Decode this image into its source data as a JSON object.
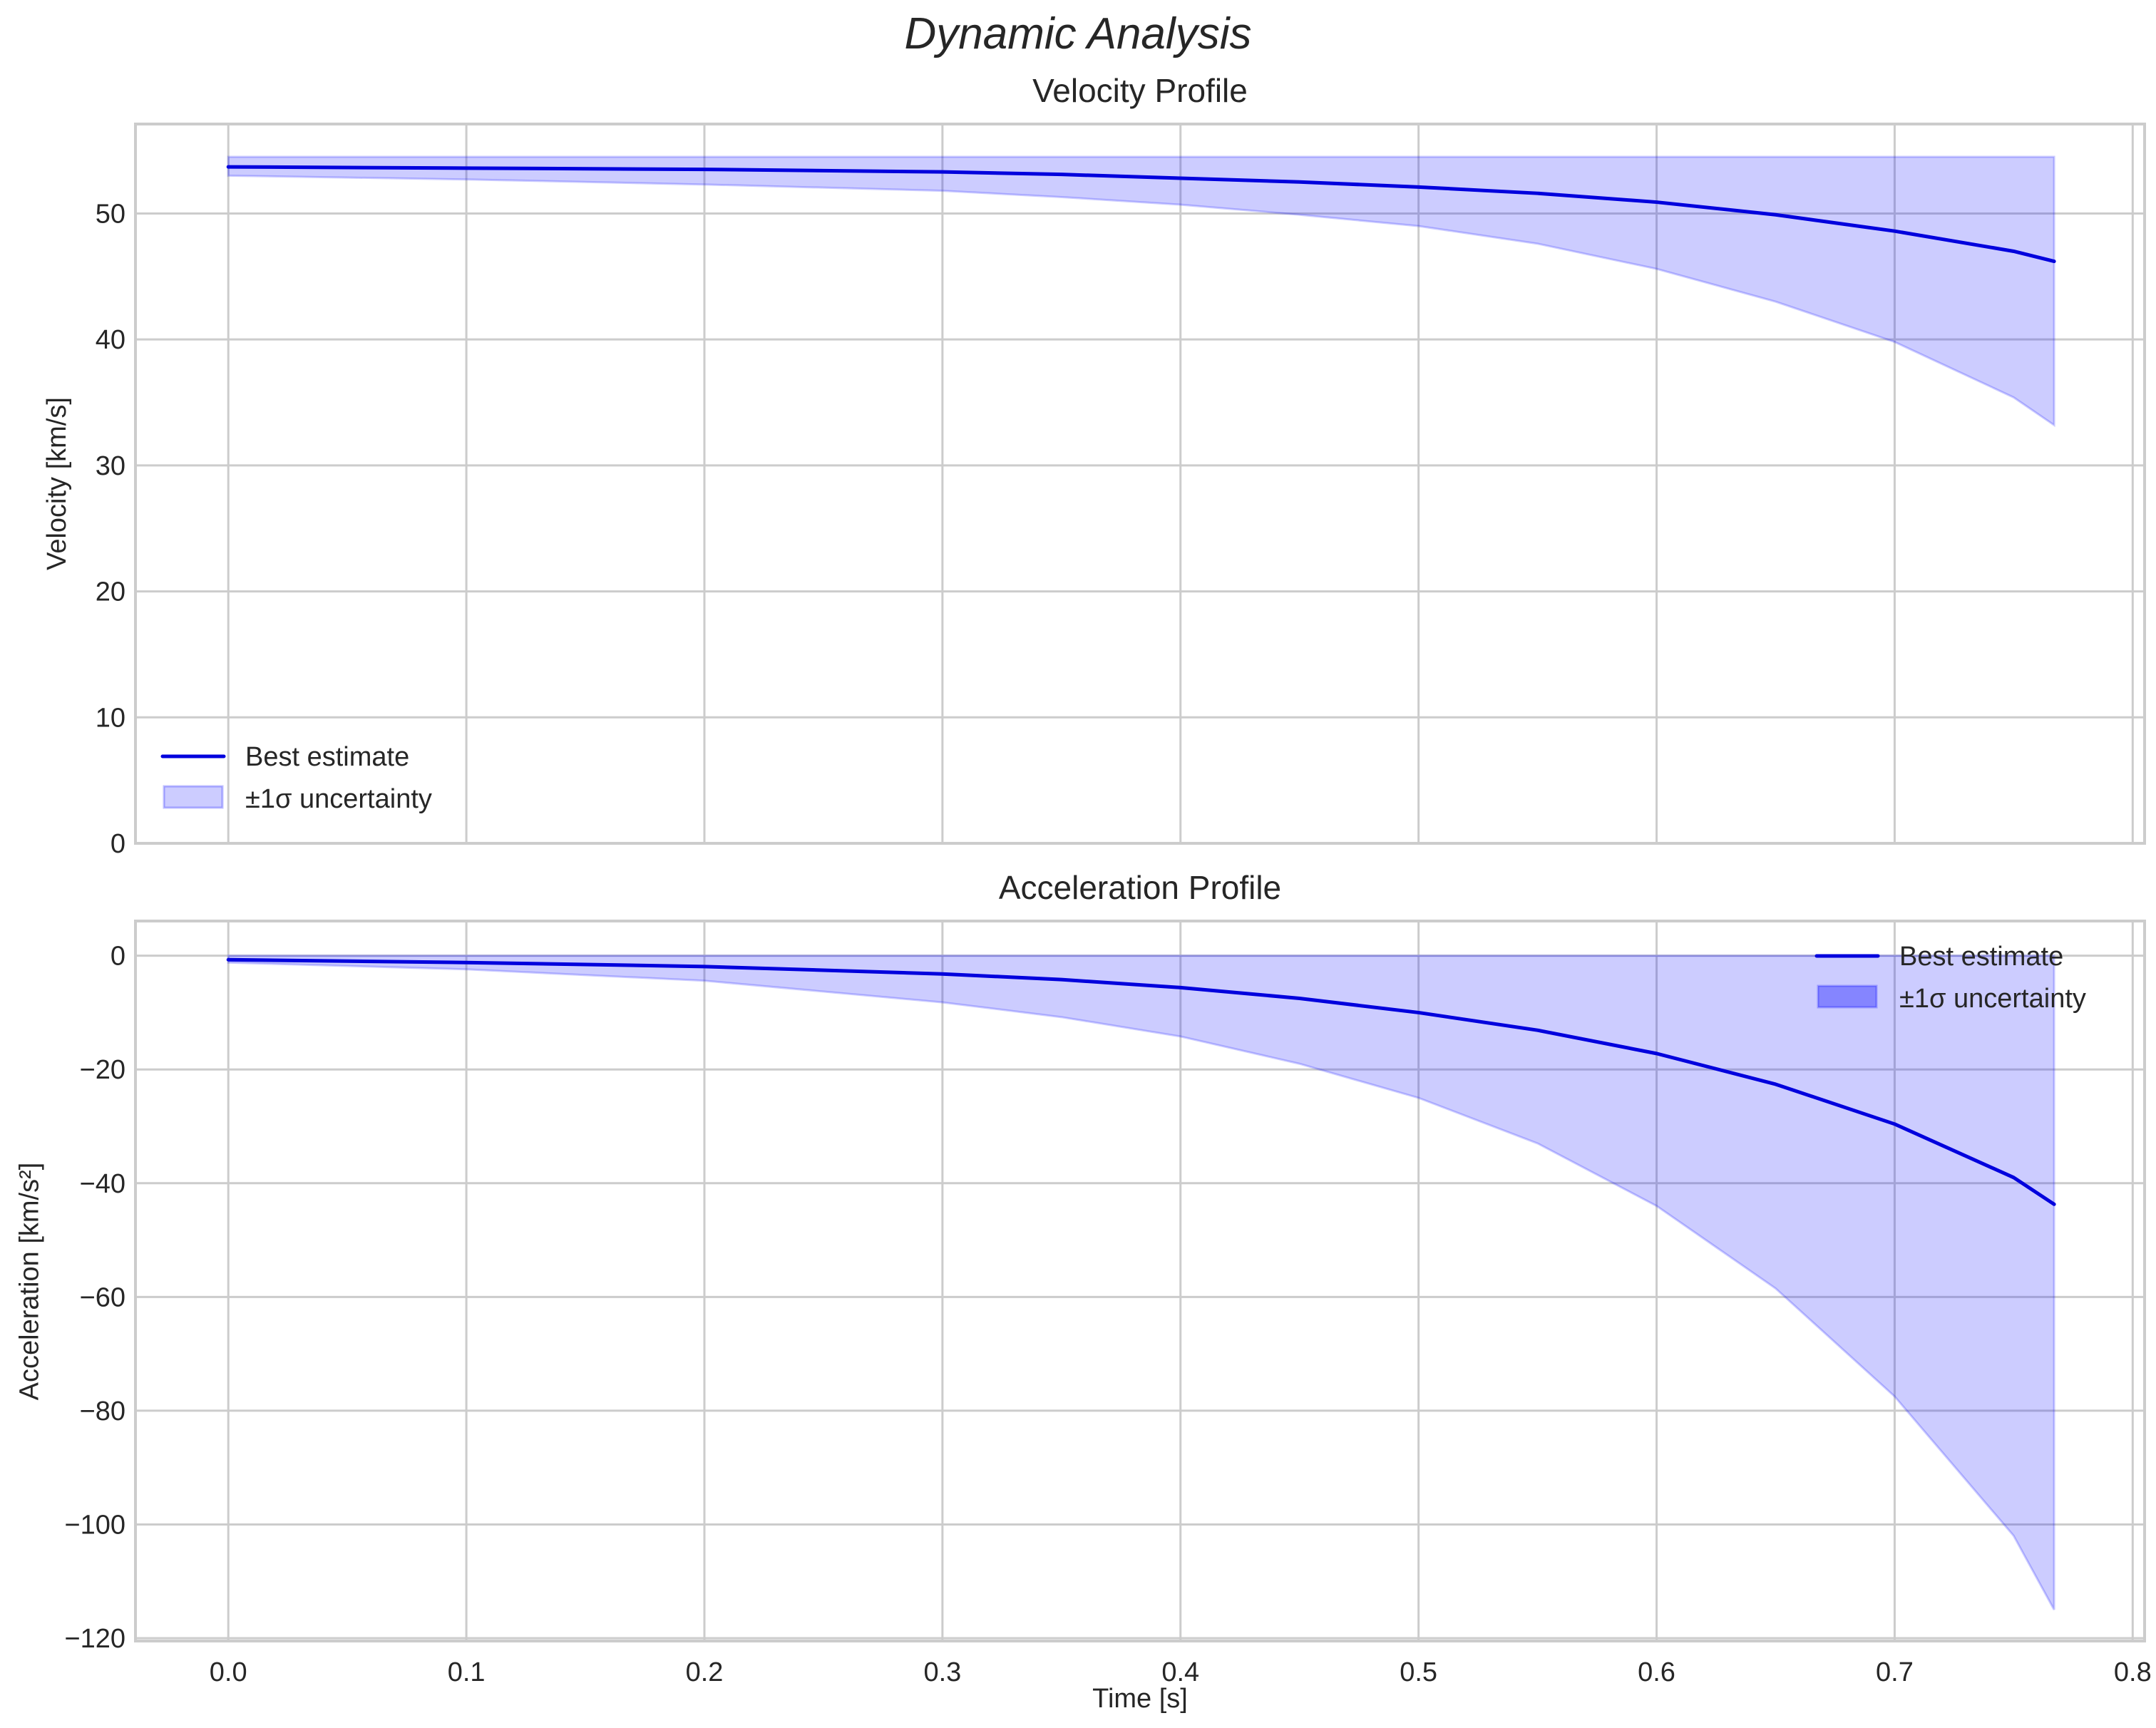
{
  "figure": {
    "suptitle": "Dynamic Analysis",
    "xlabel": "Time [s]"
  },
  "colors": {
    "line": "#0000dd",
    "band_fill": "#0000ff",
    "band_alpha": 0.2,
    "grid": "#cccccc",
    "text": "#262626"
  },
  "chart_data": [
    {
      "type": "line",
      "title": "Velocity Profile",
      "xlabel": "",
      "ylabel": "Velocity [km/s]",
      "xlim": [
        -0.039,
        0.805
      ],
      "ylim": [
        0,
        57.1
      ],
      "xticks": [
        0.0,
        0.1,
        0.2,
        0.3,
        0.4,
        0.5,
        0.6,
        0.7,
        0.8
      ],
      "xtick_labels": [
        "0.0",
        "0.1",
        "0.2",
        "0.3",
        "0.4",
        "0.5",
        "0.6",
        "0.7",
        "0.8"
      ],
      "xtick_labels_visible": false,
      "yticks": [
        0,
        10,
        20,
        30,
        40,
        50
      ],
      "ytick_labels": [
        "0",
        "10",
        "20",
        "30",
        "40",
        "50"
      ],
      "grid": true,
      "legend_position": "lower left",
      "legend": [
        "Best estimate",
        "±1σ uncertainty"
      ],
      "x": [
        0.0,
        0.1,
        0.2,
        0.3,
        0.35,
        0.4,
        0.45,
        0.5,
        0.55,
        0.6,
        0.65,
        0.7,
        0.75,
        0.767
      ],
      "series": [
        {
          "name": "Best estimate",
          "values": [
            53.7,
            53.6,
            53.5,
            53.3,
            53.1,
            52.8,
            52.5,
            52.1,
            51.6,
            50.9,
            49.9,
            48.6,
            47.0,
            46.2
          ]
        },
        {
          "name": "±1σ lower",
          "values": [
            53.0,
            52.7,
            52.3,
            51.8,
            51.3,
            50.7,
            49.9,
            49.0,
            47.6,
            45.6,
            43.0,
            39.8,
            35.4,
            33.2
          ]
        },
        {
          "name": "±1σ upper",
          "values": [
            54.5,
            54.5,
            54.5,
            54.5,
            54.5,
            54.5,
            54.5,
            54.5,
            54.5,
            54.5,
            54.5,
            54.5,
            54.5,
            54.5
          ]
        }
      ]
    },
    {
      "type": "line",
      "title": "Acceleration Profile",
      "xlabel": "Time [s]",
      "ylabel": "Acceleration [km/s²]",
      "xlim": [
        -0.039,
        0.805
      ],
      "ylim": [
        -120.5,
        6.1
      ],
      "xticks": [
        0.0,
        0.1,
        0.2,
        0.3,
        0.4,
        0.5,
        0.6,
        0.7,
        0.8
      ],
      "xtick_labels": [
        "0.0",
        "0.1",
        "0.2",
        "0.3",
        "0.4",
        "0.5",
        "0.6",
        "0.7",
        "0.8"
      ],
      "yticks": [
        0,
        -20,
        -40,
        -60,
        -80,
        -100,
        -120
      ],
      "ytick_labels": [
        "0",
        "−20",
        "−40",
        "−60",
        "−80",
        "−100",
        "−120"
      ],
      "grid": true,
      "legend_position": "upper right",
      "legend": [
        "Best estimate",
        "±1σ uncertainty"
      ],
      "x": [
        0.0,
        0.1,
        0.2,
        0.3,
        0.35,
        0.4,
        0.45,
        0.5,
        0.55,
        0.6,
        0.65,
        0.7,
        0.75,
        0.767
      ],
      "series": [
        {
          "name": "Best estimate",
          "values": [
            -0.7,
            -1.2,
            -1.9,
            -3.2,
            -4.2,
            -5.6,
            -7.5,
            -10.0,
            -13.1,
            -17.2,
            -22.6,
            -29.6,
            -39.0,
            -43.7
          ]
        },
        {
          "name": "±1σ lower",
          "values": [
            -1.2,
            -2.4,
            -4.4,
            -8.2,
            -10.8,
            -14.2,
            -19.0,
            -25.0,
            -33.0,
            -44.0,
            -58.5,
            -77.5,
            -102.0,
            -115.0
          ]
        },
        {
          "name": "±1σ upper",
          "values": [
            0,
            0,
            0,
            0,
            0,
            0,
            0,
            0,
            0,
            0,
            0,
            0,
            0,
            0
          ]
        }
      ]
    }
  ]
}
